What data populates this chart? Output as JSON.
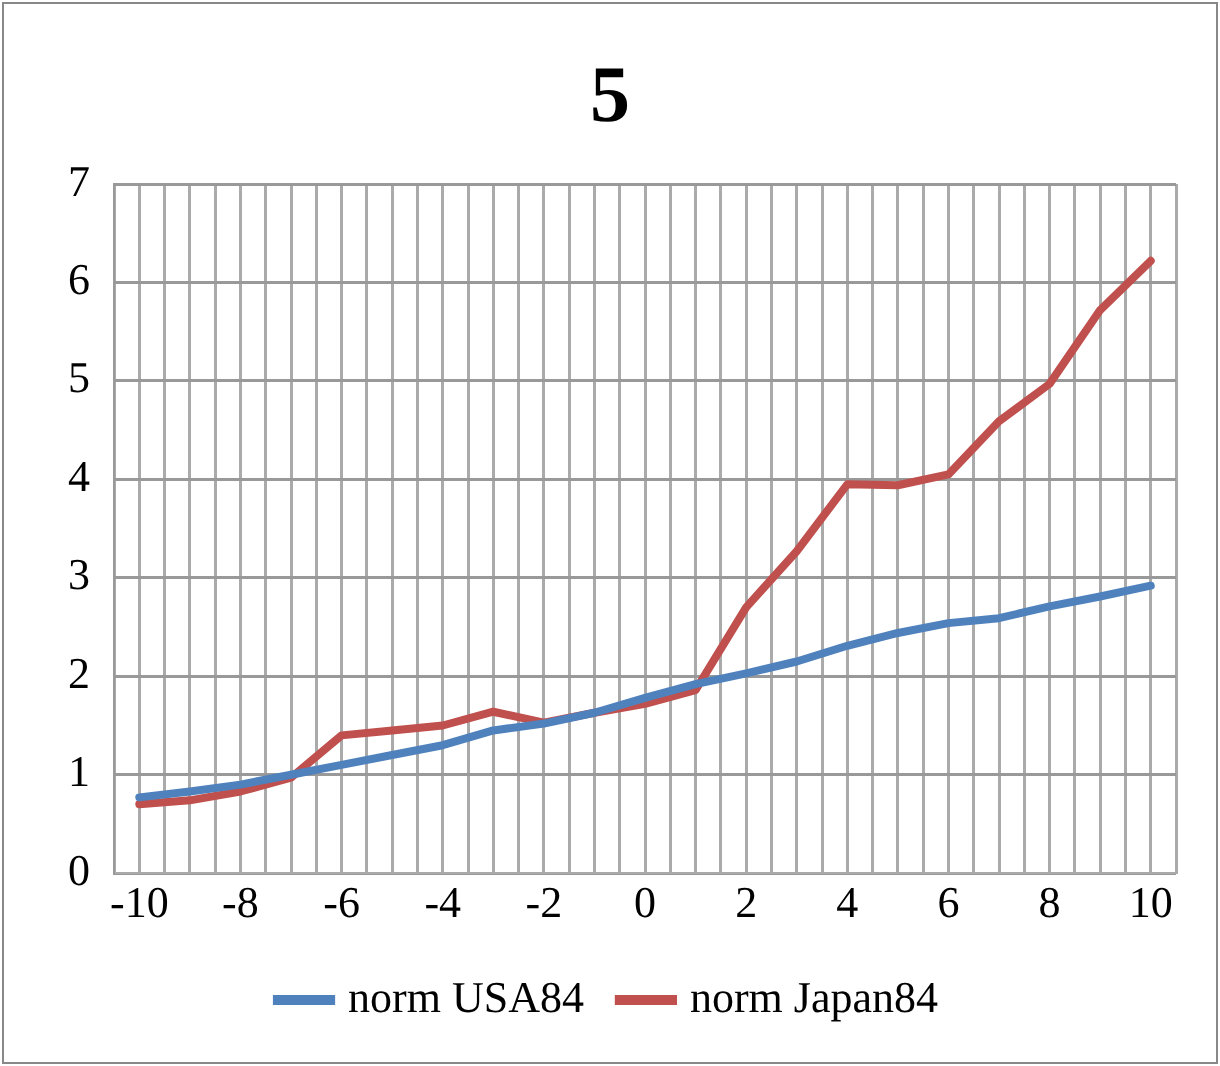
{
  "chart_data": {
    "type": "line",
    "title": "5",
    "x": [
      -10,
      -9,
      -8,
      -7,
      -6,
      -5,
      -4,
      -3,
      -2,
      -1,
      0,
      1,
      2,
      3,
      4,
      5,
      6,
      7,
      8,
      9,
      10
    ],
    "series": [
      {
        "name": "norm USA84",
        "color": "#4f81bd",
        "values": [
          0.77,
          0.83,
          0.9,
          1.0,
          1.1,
          1.2,
          1.3,
          1.45,
          1.52,
          1.63,
          1.78,
          1.92,
          2.03,
          2.15,
          2.31,
          2.44,
          2.54,
          2.59,
          2.71,
          2.81,
          2.92
        ]
      },
      {
        "name": "norm Japan84",
        "color": "#c0504d",
        "values": [
          0.7,
          0.74,
          0.83,
          0.97,
          1.4,
          1.45,
          1.5,
          1.64,
          1.53,
          1.63,
          1.72,
          1.86,
          2.7,
          3.27,
          3.95,
          3.94,
          4.05,
          4.59,
          4.97,
          5.72,
          6.22
        ]
      }
    ],
    "xlim": [
      -10.5,
      10.5
    ],
    "xticks": [
      {
        "value": -10.5,
        "label": null
      },
      -10,
      {
        "value": -9.5,
        "label": null
      },
      {
        "value": -9,
        "label": null
      },
      {
        "value": -8.5,
        "label": null
      },
      -8,
      {
        "value": -7.5,
        "label": null
      },
      {
        "value": -7,
        "label": null
      },
      {
        "value": -6.5,
        "label": null
      },
      -6,
      {
        "value": -5.5,
        "label": null
      },
      {
        "value": -5,
        "label": null
      },
      {
        "value": -4.5,
        "label": null
      },
      -4,
      {
        "value": -3.5,
        "label": null
      },
      {
        "value": -3,
        "label": null
      },
      {
        "value": -2.5,
        "label": null
      },
      -2,
      {
        "value": -1.5,
        "label": null
      },
      {
        "value": -1,
        "label": null
      },
      {
        "value": -0.5,
        "label": null
      },
      0,
      {
        "value": 0.5,
        "label": null
      },
      {
        "value": 1,
        "label": null
      },
      {
        "value": 1.5,
        "label": null
      },
      2,
      {
        "value": 2.5,
        "label": null
      },
      {
        "value": 3,
        "label": null
      },
      {
        "value": 3.5,
        "label": null
      },
      4,
      {
        "value": 4.5,
        "label": null
      },
      {
        "value": 5,
        "label": null
      },
      {
        "value": 5.5,
        "label": null
      },
      6,
      {
        "value": 6.5,
        "label": null
      },
      {
        "value": 7,
        "label": null
      },
      {
        "value": 7.5,
        "label": null
      },
      8,
      {
        "value": 8.5,
        "label": null
      },
      {
        "value": 9,
        "label": null
      },
      {
        "value": 9.5,
        "label": null
      },
      10,
      {
        "value": 10.5,
        "label": null
      }
    ],
    "ylim": [
      0,
      7
    ],
    "yticks": [
      0,
      1,
      2,
      3,
      4,
      5,
      6,
      7
    ],
    "grid": true,
    "legend": "bottom",
    "marker": "none",
    "line_style": "solid"
  }
}
